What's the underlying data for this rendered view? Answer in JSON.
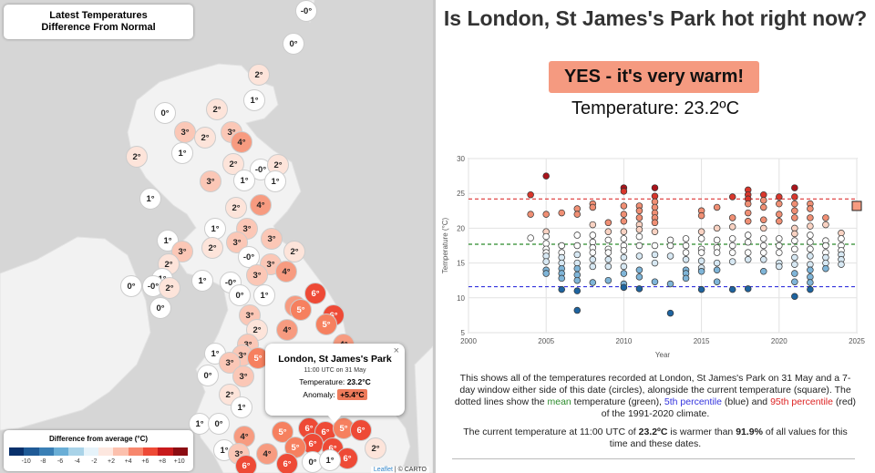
{
  "map": {
    "title_line1": "Latest Temperatures",
    "title_line2": "Difference From Normal",
    "markers": [
      {
        "t": "-0°",
        "x": 336,
        "y": 12
      },
      {
        "t": "0°",
        "x": 322,
        "y": 48
      },
      {
        "t": "2°",
        "x": 284,
        "y": 82
      },
      {
        "t": "1°",
        "x": 279,
        "y": 110
      },
      {
        "t": "0°",
        "x": 181,
        "y": 124
      },
      {
        "t": "2°",
        "x": 238,
        "y": 120
      },
      {
        "t": "3°",
        "x": 203,
        "y": 145
      },
      {
        "t": "2°",
        "x": 225,
        "y": 151
      },
      {
        "t": "3°",
        "x": 254,
        "y": 145
      },
      {
        "t": "4°",
        "x": 265,
        "y": 156
      },
      {
        "t": "2°",
        "x": 150,
        "y": 172
      },
      {
        "t": "1°",
        "x": 200,
        "y": 168
      },
      {
        "t": "2°",
        "x": 256,
        "y": 180
      },
      {
        "t": "-0°",
        "x": 286,
        "y": 186
      },
      {
        "t": "2°",
        "x": 305,
        "y": 181
      },
      {
        "t": "3°",
        "x": 231,
        "y": 199
      },
      {
        "t": "1°",
        "x": 268,
        "y": 198
      },
      {
        "t": "1°",
        "x": 302,
        "y": 199
      },
      {
        "t": "1°",
        "x": 165,
        "y": 218
      },
      {
        "t": "2°",
        "x": 259,
        "y": 228
      },
      {
        "t": "4°",
        "x": 286,
        "y": 225
      },
      {
        "t": "1°",
        "x": 236,
        "y": 251
      },
      {
        "t": "3°",
        "x": 271,
        "y": 251
      },
      {
        "t": "1°",
        "x": 184,
        "y": 264
      },
      {
        "t": "3°",
        "x": 200,
        "y": 276
      },
      {
        "t": "2°",
        "x": 233,
        "y": 272
      },
      {
        "t": "3°",
        "x": 260,
        "y": 266
      },
      {
        "t": "3°",
        "x": 298,
        "y": 262
      },
      {
        "t": "2°",
        "x": 323,
        "y": 276
      },
      {
        "t": "2°",
        "x": 185,
        "y": 290
      },
      {
        "t": "-0°",
        "x": 273,
        "y": 282
      },
      {
        "t": "3°",
        "x": 297,
        "y": 290
      },
      {
        "t": "4°",
        "x": 314,
        "y": 298
      },
      {
        "t": "3°",
        "x": 282,
        "y": 302
      },
      {
        "t": "1°",
        "x": 178,
        "y": 306
      },
      {
        "t": "0°",
        "x": 144,
        "y": 314
      },
      {
        "t": "-0°",
        "x": 168,
        "y": 314
      },
      {
        "t": "2°",
        "x": 186,
        "y": 316
      },
      {
        "t": "1°",
        "x": 222,
        "y": 308
      },
      {
        "t": "-0°",
        "x": 253,
        "y": 310
      },
      {
        "t": "0°",
        "x": 263,
        "y": 324
      },
      {
        "t": "1°",
        "x": 290,
        "y": 324
      },
      {
        "t": "6°",
        "x": 346,
        "y": 322
      },
      {
        "t": "4°",
        "x": 324,
        "y": 336
      },
      {
        "t": "5°",
        "x": 330,
        "y": 340
      },
      {
        "t": "6°",
        "x": 366,
        "y": 346
      },
      {
        "t": "5°",
        "x": 358,
        "y": 356
      },
      {
        "t": "0°",
        "x": 176,
        "y": 338
      },
      {
        "t": "3°",
        "x": 274,
        "y": 346
      },
      {
        "t": "4°",
        "x": 315,
        "y": 362
      },
      {
        "t": "2°",
        "x": 282,
        "y": 362
      },
      {
        "t": "4°",
        "x": 377,
        "y": 378
      },
      {
        "t": "3°",
        "x": 272,
        "y": 378
      },
      {
        "t": "1°",
        "x": 236,
        "y": 388
      },
      {
        "t": "3°",
        "x": 266,
        "y": 390
      },
      {
        "t": "5°",
        "x": 283,
        "y": 393
      },
      {
        "t": "3°",
        "x": 252,
        "y": 398
      },
      {
        "t": "0°",
        "x": 228,
        "y": 412
      },
      {
        "t": "3°",
        "x": 267,
        "y": 413
      },
      {
        "t": "2°",
        "x": 252,
        "y": 433
      },
      {
        "t": "1°",
        "x": 265,
        "y": 447
      },
      {
        "t": "1°",
        "x": 219,
        "y": 465
      },
      {
        "t": "0°",
        "x": 240,
        "y": 465
      },
      {
        "t": "5°",
        "x": 310,
        "y": 474
      },
      {
        "t": "6°",
        "x": 339,
        "y": 470
      },
      {
        "t": "6°",
        "x": 357,
        "y": 474
      },
      {
        "t": "5°",
        "x": 377,
        "y": 470
      },
      {
        "t": "6°",
        "x": 396,
        "y": 472
      },
      {
        "t": "4°",
        "x": 268,
        "y": 479
      },
      {
        "t": "6°",
        "x": 343,
        "y": 487
      },
      {
        "t": "6°",
        "x": 365,
        "y": 492
      },
      {
        "t": "5°",
        "x": 324,
        "y": 491
      },
      {
        "t": "6°",
        "x": 381,
        "y": 503
      },
      {
        "t": "2°",
        "x": 412,
        "y": 492
      },
      {
        "t": "1°",
        "x": 246,
        "y": 494
      },
      {
        "t": "3°",
        "x": 262,
        "y": 498
      },
      {
        "t": "4°",
        "x": 293,
        "y": 498
      },
      {
        "t": "0°",
        "x": 343,
        "y": 507
      },
      {
        "t": "1°",
        "x": 362,
        "y": 505
      },
      {
        "t": "6°",
        "x": 315,
        "y": 509
      },
      {
        "t": "6°",
        "x": 270,
        "y": 511
      }
    ],
    "popup": {
      "title": "London, St James's Park",
      "time": "11:00 UTC on 31 May",
      "temp_label": "Temperature:",
      "temp_value": "23.2°C",
      "anomaly_label": "Anomaly:",
      "anomaly_value": "+5.4°C",
      "close": "×"
    },
    "legend": {
      "title": "Difference from average (°C)",
      "colors": [
        "#08306b",
        "#1f5a96",
        "#3a7fb5",
        "#6aaed6",
        "#a9d3e8",
        "#e6f3fa",
        "#fde7df",
        "#fcc0ad",
        "#f7876d",
        "#ee4a36",
        "#c81a1c",
        "#8b0c12"
      ],
      "ticks": [
        "-10",
        "-8",
        "-6",
        "-4",
        "-2",
        "+2",
        "+4",
        "+6",
        "+8",
        "+10"
      ]
    },
    "attribution_link": "Leaflet",
    "attribution_rest": " | © CARTO"
  },
  "header": {
    "question": "Is London, St James's Park hot right now?",
    "answer": "YES - it's very warm!",
    "temperature_text": "Temperature: 23.2ºC"
  },
  "chart_data": {
    "type": "scatter",
    "xlabel": "Year",
    "ylabel": "Temperature (°C)",
    "xlim": [
      2000,
      2025
    ],
    "ylim": [
      5,
      30
    ],
    "xticks": [
      2000,
      2005,
      2010,
      2015,
      2020,
      2025
    ],
    "yticks": [
      5,
      10,
      15,
      20,
      25,
      30
    ],
    "grid": true,
    "reference_lines": [
      {
        "name": "95th percentile",
        "y": 24.2,
        "color": "#d33"
      },
      {
        "name": "mean",
        "y": 17.7,
        "color": "#2a8a2a"
      },
      {
        "name": "5th percentile",
        "y": 11.6,
        "color": "#3333dd"
      }
    ],
    "current": {
      "x": 2025,
      "y": 23.2
    },
    "points": [
      [
        2004,
        24.8
      ],
      [
        2004,
        22
      ],
      [
        2004,
        18.6
      ],
      [
        2005,
        27.5
      ],
      [
        2005,
        22
      ],
      [
        2005,
        19.5
      ],
      [
        2005,
        18.8
      ],
      [
        2005,
        17.8
      ],
      [
        2005,
        17
      ],
      [
        2005,
        16.5
      ],
      [
        2005,
        16
      ],
      [
        2005,
        15.2
      ],
      [
        2005,
        14
      ],
      [
        2005,
        13.5
      ],
      [
        2006,
        22.2
      ],
      [
        2006,
        17.5
      ],
      [
        2006,
        16.5
      ],
      [
        2006,
        15.8
      ],
      [
        2006,
        15
      ],
      [
        2006,
        14.2
      ],
      [
        2006,
        13.5
      ],
      [
        2006,
        12.8
      ],
      [
        2006,
        11.2
      ],
      [
        2007,
        22.8
      ],
      [
        2007,
        22
      ],
      [
        2007,
        19
      ],
      [
        2007,
        17.5
      ],
      [
        2007,
        16.2
      ],
      [
        2007,
        15
      ],
      [
        2007,
        14.2
      ],
      [
        2007,
        13.3
      ],
      [
        2007,
        12.5
      ],
      [
        2007,
        11
      ],
      [
        2007,
        8.2
      ],
      [
        2008,
        23.5
      ],
      [
        2008,
        23
      ],
      [
        2008,
        20.5
      ],
      [
        2008,
        19
      ],
      [
        2008,
        18
      ],
      [
        2008,
        17.2
      ],
      [
        2008,
        16.5
      ],
      [
        2008,
        15.5
      ],
      [
        2008,
        14.5
      ],
      [
        2008,
        12.2
      ],
      [
        2009,
        20.8
      ],
      [
        2009,
        19.5
      ],
      [
        2009,
        18.3
      ],
      [
        2009,
        17
      ],
      [
        2009,
        16.5
      ],
      [
        2009,
        15.5
      ],
      [
        2009,
        14.5
      ],
      [
        2009,
        12.5
      ],
      [
        2010,
        25.8
      ],
      [
        2010,
        25.3
      ],
      [
        2010,
        23.2
      ],
      [
        2010,
        22
      ],
      [
        2010,
        21
      ],
      [
        2010,
        19.5
      ],
      [
        2010,
        18.5
      ],
      [
        2010,
        17.5
      ],
      [
        2010,
        16.8
      ],
      [
        2010,
        15.8
      ],
      [
        2010,
        14.5
      ],
      [
        2010,
        13.5
      ],
      [
        2010,
        12
      ],
      [
        2010,
        11.5
      ],
      [
        2011,
        23.2
      ],
      [
        2011,
        22.5
      ],
      [
        2011,
        21.5
      ],
      [
        2011,
        20.5
      ],
      [
        2011,
        19.8
      ],
      [
        2011,
        18.8
      ],
      [
        2011,
        17.5
      ],
      [
        2011,
        16
      ],
      [
        2011,
        14
      ],
      [
        2011,
        13
      ],
      [
        2011,
        11.3
      ],
      [
        2012,
        25.8
      ],
      [
        2012,
        24.6
      ],
      [
        2012,
        23.8
      ],
      [
        2012,
        23
      ],
      [
        2012,
        22.2
      ],
      [
        2012,
        21.5
      ],
      [
        2012,
        20.8
      ],
      [
        2012,
        19.5
      ],
      [
        2012,
        17.5
      ],
      [
        2012,
        16.2
      ],
      [
        2012,
        15
      ],
      [
        2012,
        12.3
      ],
      [
        2013,
        18.3
      ],
      [
        2013,
        17.5
      ],
      [
        2013,
        16
      ],
      [
        2013,
        12
      ],
      [
        2013,
        7.8
      ],
      [
        2014,
        18.5
      ],
      [
        2014,
        17.5
      ],
      [
        2014,
        16.5
      ],
      [
        2014,
        15.5
      ],
      [
        2014,
        14
      ],
      [
        2014,
        13.5
      ],
      [
        2014,
        12.8
      ],
      [
        2015,
        22.5
      ],
      [
        2015,
        21.8
      ],
      [
        2015,
        19.5
      ],
      [
        2015,
        18.5
      ],
      [
        2015,
        17
      ],
      [
        2015,
        16.5
      ],
      [
        2015,
        15.3
      ],
      [
        2015,
        14.3
      ],
      [
        2015,
        13.8
      ],
      [
        2015,
        11.2
      ],
      [
        2016,
        23
      ],
      [
        2016,
        20
      ],
      [
        2016,
        18.3
      ],
      [
        2016,
        17.2
      ],
      [
        2016,
        16.5
      ],
      [
        2016,
        15
      ],
      [
        2016,
        14
      ],
      [
        2016,
        12.3
      ],
      [
        2017,
        24.5
      ],
      [
        2017,
        21.5
      ],
      [
        2017,
        20.2
      ],
      [
        2017,
        18.5
      ],
      [
        2017,
        17.5
      ],
      [
        2017,
        16.5
      ],
      [
        2017,
        15.2
      ],
      [
        2017,
        11.2
      ],
      [
        2018,
        25.5
      ],
      [
        2018,
        24.8
      ],
      [
        2018,
        24.2
      ],
      [
        2018,
        23.5
      ],
      [
        2018,
        22.2
      ],
      [
        2018,
        21
      ],
      [
        2018,
        19
      ],
      [
        2018,
        18
      ],
      [
        2018,
        16.5
      ],
      [
        2018,
        15.5
      ],
      [
        2018,
        11.3
      ],
      [
        2019,
        24.8
      ],
      [
        2019,
        24
      ],
      [
        2019,
        23
      ],
      [
        2019,
        21.2
      ],
      [
        2019,
        20
      ],
      [
        2019,
        18.5
      ],
      [
        2019,
        17.5
      ],
      [
        2019,
        16.5
      ],
      [
        2019,
        15.5
      ],
      [
        2019,
        13.8
      ],
      [
        2020,
        24.5
      ],
      [
        2020,
        23.5
      ],
      [
        2020,
        22
      ],
      [
        2020,
        21
      ],
      [
        2020,
        18.5
      ],
      [
        2020,
        17.5
      ],
      [
        2020,
        16.5
      ],
      [
        2020,
        15
      ],
      [
        2020,
        14.5
      ],
      [
        2021,
        25.8
      ],
      [
        2021,
        24.5
      ],
      [
        2021,
        23.5
      ],
      [
        2021,
        22.5
      ],
      [
        2021,
        21.5
      ],
      [
        2021,
        20
      ],
      [
        2021,
        19.2
      ],
      [
        2021,
        18.2
      ],
      [
        2021,
        17
      ],
      [
        2021,
        15.8
      ],
      [
        2021,
        14.8
      ],
      [
        2021,
        13.5
      ],
      [
        2021,
        12.3
      ],
      [
        2021,
        10.2
      ],
      [
        2022,
        23.5
      ],
      [
        2022,
        22.8
      ],
      [
        2022,
        21.5
      ],
      [
        2022,
        20.3
      ],
      [
        2022,
        19
      ],
      [
        2022,
        18
      ],
      [
        2022,
        17
      ],
      [
        2022,
        16
      ],
      [
        2022,
        14.8
      ],
      [
        2022,
        14
      ],
      [
        2022,
        13
      ],
      [
        2022,
        12.2
      ],
      [
        2022,
        11.2
      ],
      [
        2023,
        21.5
      ],
      [
        2023,
        20.5
      ],
      [
        2023,
        18.2
      ],
      [
        2023,
        17.5
      ],
      [
        2023,
        16.5
      ],
      [
        2023,
        15.8
      ],
      [
        2023,
        15
      ],
      [
        2023,
        14.2
      ],
      [
        2024,
        19.3
      ],
      [
        2024,
        18.5
      ],
      [
        2024,
        17.5
      ],
      [
        2024,
        16.8
      ],
      [
        2024,
        16.2
      ],
      [
        2024,
        15.5
      ],
      [
        2024,
        14.8
      ]
    ]
  },
  "description": {
    "p1_a": "This shows all of the temperatures recorded at London, St James's Park on 31 May and a 7-day window either side of this date (circles), alongside the current temperature (square). The dotted lines show the ",
    "mean": "mean",
    "p1_b": " temperature (green), ",
    "p5": "5th percentile",
    "p1_c": " (blue) and ",
    "p95": "95th percentile",
    "p1_d": " (red) of the 1991-2020 climate.",
    "p2_a": "The current temperature at 11:00 UTC of ",
    "p2_temp": "23.2ºC",
    "p2_b": " is warmer than ",
    "p2_pct": "91.9%",
    "p2_c": " of all values for this time and these dates."
  }
}
